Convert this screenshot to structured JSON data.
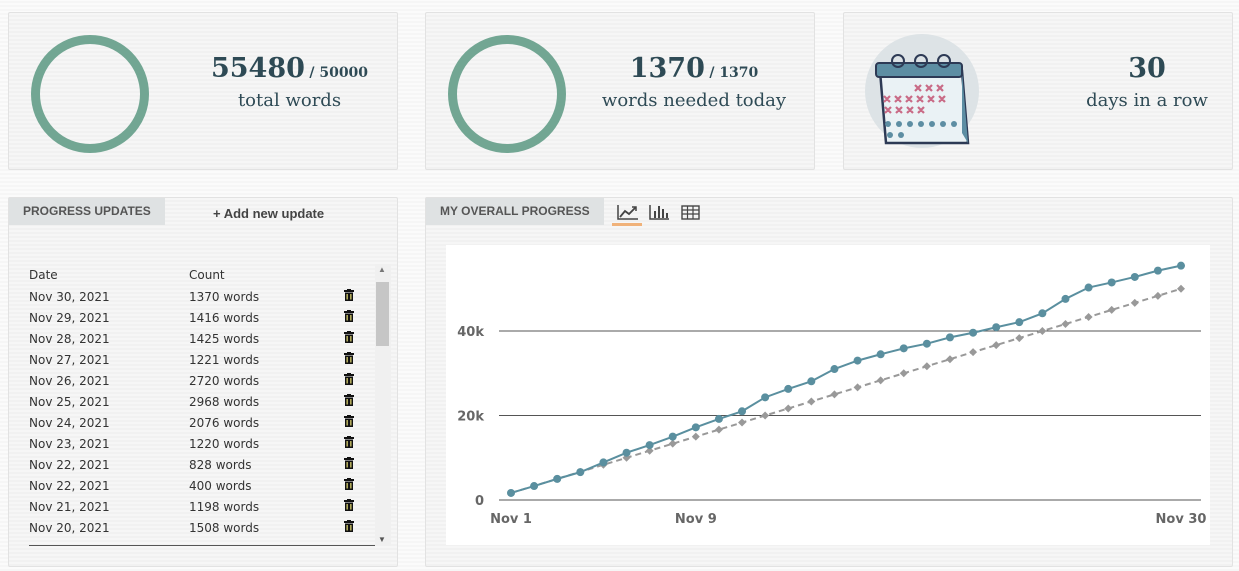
{
  "stats": {
    "total": {
      "value": "55480",
      "goal": "/ 50000",
      "label": "total words"
    },
    "today": {
      "value": "1370",
      "goal": "/ 1370",
      "label": "words needed today"
    },
    "streak": {
      "value": "30",
      "label": "days in a row"
    }
  },
  "updates": {
    "tab_label": "PROGRESS UPDATES",
    "add_label": "+ Add new update",
    "col_date": "Date",
    "col_count": "Count",
    "rows": [
      {
        "date": "Nov 30, 2021",
        "count": "1370 words"
      },
      {
        "date": "Nov 29, 2021",
        "count": "1416 words"
      },
      {
        "date": "Nov 28, 2021",
        "count": "1425 words"
      },
      {
        "date": "Nov 27, 2021",
        "count": "1221 words"
      },
      {
        "date": "Nov 26, 2021",
        "count": "2720 words"
      },
      {
        "date": "Nov 25, 2021",
        "count": "2968 words"
      },
      {
        "date": "Nov 24, 2021",
        "count": "2076 words"
      },
      {
        "date": "Nov 23, 2021",
        "count": "1220 words"
      },
      {
        "date": "Nov 22, 2021",
        "count": "828 words"
      },
      {
        "date": "Nov 22, 2021",
        "count": "400 words"
      },
      {
        "date": "Nov 21, 2021",
        "count": "1198 words"
      },
      {
        "date": "Nov 20, 2021",
        "count": "1508 words"
      }
    ],
    "scrollbar": {
      "up_icon": "▲",
      "down_icon": "▼"
    }
  },
  "progress": {
    "tab_label": "MY OVERALL PROGRESS",
    "views": [
      "line-chart-icon",
      "bar-chart-icon",
      "table-icon"
    ],
    "active_view": "line-chart-icon"
  },
  "colors": {
    "accent": "#72a693",
    "actual": "#5a8f9f",
    "target": "#999999",
    "active_tab_underline": "#f0b27a"
  },
  "chart_data": {
    "type": "line",
    "x": [
      1,
      2,
      3,
      4,
      5,
      6,
      7,
      8,
      9,
      10,
      11,
      12,
      13,
      14,
      15,
      16,
      17,
      18,
      19,
      20,
      21,
      22,
      23,
      24,
      25,
      26,
      27,
      28,
      29,
      30
    ],
    "x_ticks": [
      {
        "day": 1,
        "label": "Nov 1"
      },
      {
        "day": 9,
        "label": "Nov 9"
      },
      {
        "day": 30,
        "label": "Nov 30"
      }
    ],
    "y_ticks": [
      {
        "value": 0,
        "label": "0"
      },
      {
        "value": 20000,
        "label": "20k"
      },
      {
        "value": 40000,
        "label": "40k"
      }
    ],
    "ylim": [
      0,
      58000
    ],
    "grid": true,
    "series": [
      {
        "role": "actual",
        "values": [
          1667,
          3300,
          5000,
          6600,
          8900,
          11200,
          13000,
          15000,
          17200,
          19200,
          21000,
          24300,
          26300,
          28100,
          31000,
          33000,
          34500,
          35900,
          37000,
          38500,
          39600,
          40900,
          42100,
          44200,
          47600,
          50300,
          51500,
          52800,
          54300,
          55480
        ]
      },
      {
        "role": "target",
        "values": [
          1667,
          3333,
          5000,
          6667,
          8333,
          10000,
          11667,
          13333,
          15000,
          16667,
          18333,
          20000,
          21667,
          23333,
          25000,
          26667,
          28333,
          30000,
          31667,
          33333,
          35000,
          36667,
          38333,
          40000,
          41667,
          43333,
          45000,
          46667,
          48333,
          50000
        ]
      }
    ]
  }
}
